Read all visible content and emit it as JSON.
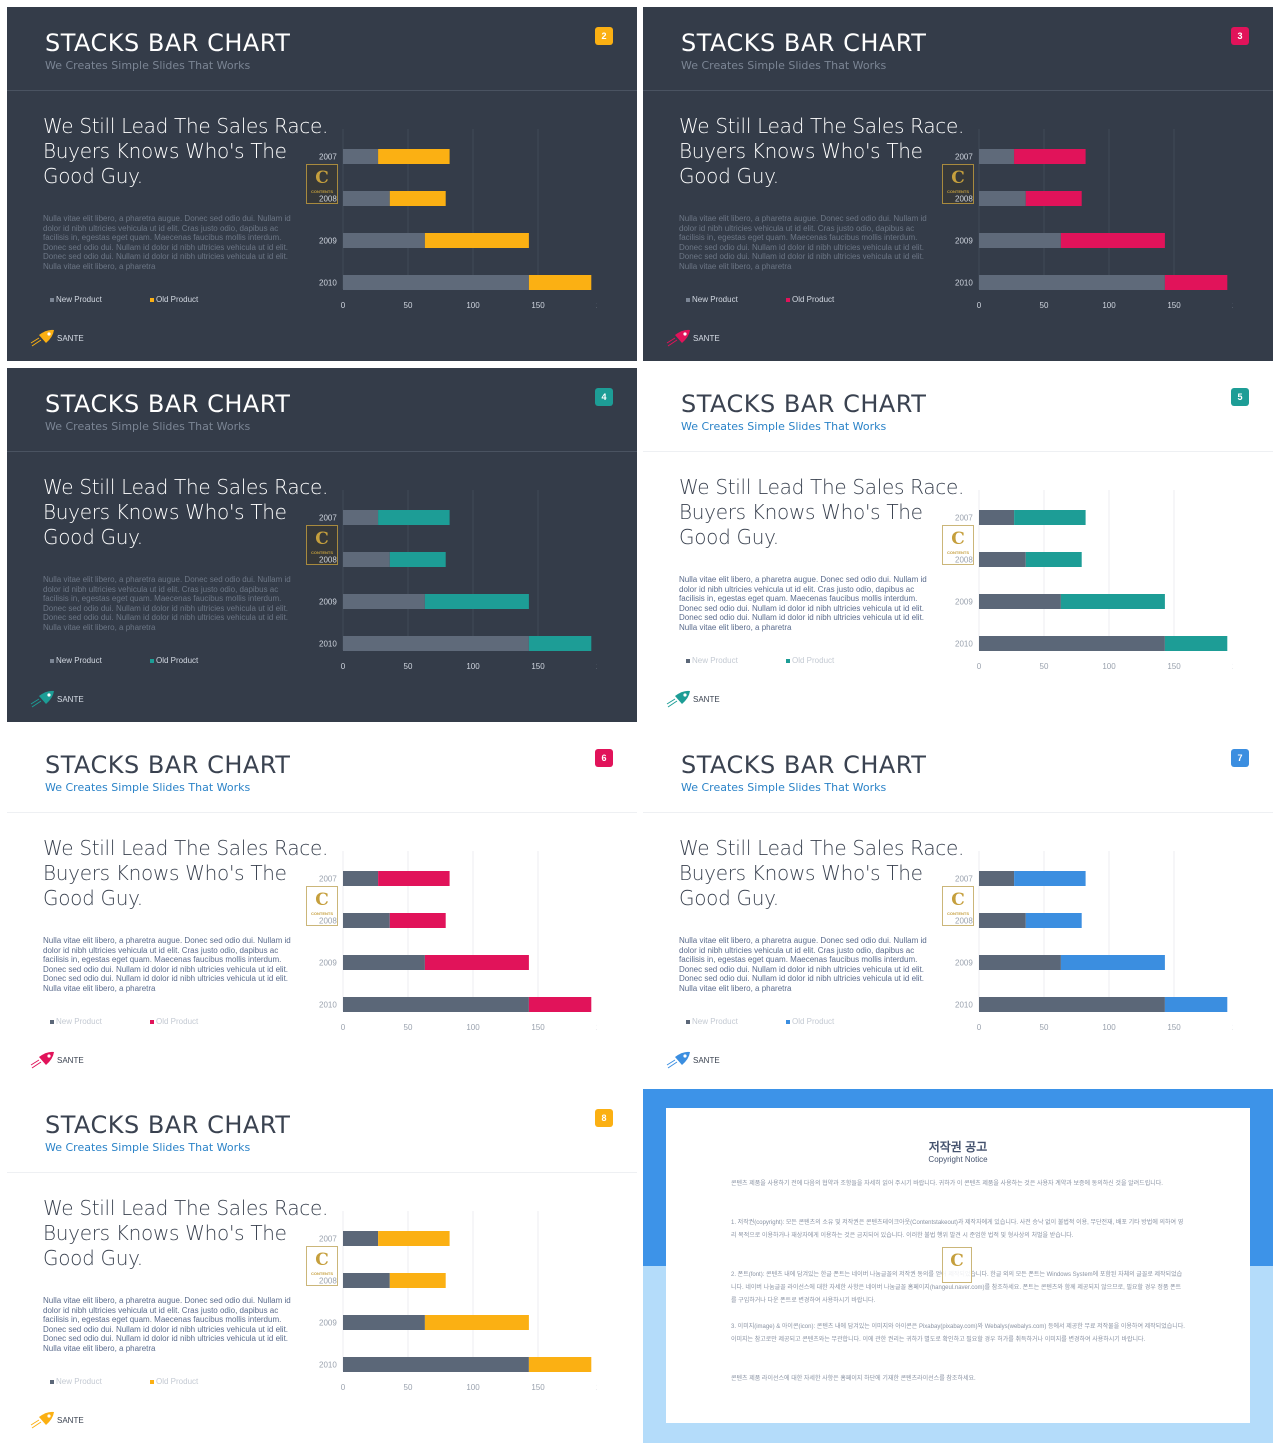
{
  "colors": {
    "new_product": "#5b6778",
    "dark_background": "#343c49",
    "light_background": "#ffffff",
    "orange": "#fbb013",
    "pink": "#e1135a",
    "teal": "#1d9d96",
    "blue": "#3b8ee0"
  },
  "slide_text": {
    "title": "STACKS BAR CHART",
    "subtitle": "We Creates Simple Slides That Works",
    "headline": [
      "We Still Lead The Sales Race.",
      "Buyers Knows Who's The",
      "Good Guy."
    ],
    "body": "Nulla vitae elit libero, a pharetra augue. Donec sed odio dui. Nullam id dolor id nibh ultricies vehicula ut id elit. Cras justo odio, dapibus ac facilisis in, egestas eget quam. Maecenas faucibus mollis interdum. Donec sed odio dui. Nullam id dolor id nibh ultricies vehicula ut id elit. Donec sed odio dui. Nullam id dolor id nibh ultricies vehicula ut id elit. Nulla vitae elit libero, a pharetra",
    "brand": "SANTE",
    "seal_letter": "C",
    "seal_text": "CONTENTS"
  },
  "slides": [
    {
      "number": "2",
      "theme": "dark",
      "accent": "#fbb013",
      "icon": "rocket-icon"
    },
    {
      "number": "3",
      "theme": "dark",
      "accent": "#e1135a",
      "icon": "rocket-icon"
    },
    {
      "number": "4",
      "theme": "dark",
      "accent": "#1d9d96",
      "icon": "rocket-icon"
    },
    {
      "number": "5",
      "theme": "light",
      "accent": "#1d9d96",
      "icon": "rocket-icon"
    },
    {
      "number": "6",
      "theme": "light",
      "accent": "#e1135a",
      "icon": "rocket-icon"
    },
    {
      "number": "7",
      "theme": "light",
      "accent": "#3b8ee0",
      "icon": "rocket-icon"
    },
    {
      "number": "8",
      "theme": "light",
      "accent": "#fbb013",
      "icon": "rocket-icon"
    }
  ],
  "chart_data": {
    "type": "bar",
    "orientation": "horizontal",
    "stacked": true,
    "categories": [
      "2007",
      "2008",
      "2009",
      "2010"
    ],
    "series": [
      {
        "name": "New Product",
        "values": [
          27,
          36,
          63,
          143
        ]
      },
      {
        "name": "Old Product",
        "values": [
          55,
          43,
          80,
          48
        ]
      }
    ],
    "xlim": [
      0,
      200
    ],
    "xticks": [
      0,
      50,
      100,
      150,
      200
    ],
    "grid": "vertical",
    "legend": "bottom-left"
  },
  "copyright": {
    "title": "저작권 공고",
    "subtitle": "Copyright Notice",
    "paragraphs": [
      "콘텐츠 제품을 사용하기 전에 다음의 협약과 조항들을 자세히 읽어 주시기 바랍니다. 귀하가 이 콘텐츠 제품을 사용하는 것은 사용자 계약과 보증에 동의하신 것을 알려드립니다.",
      "1. 저작권(copyright): 모든 콘텐츠의 소유 및 저작권은 콘텐츠테이크아웃(Contentstakeout)과 제작자에게 있습니다. 사전 승낙 없이 불법적 이용, 무단전재, 배포 기타 방법에 의하여 영리 목적으로 이용하거나 재상자에게 이용하는 것은 금지되어 있습니다. 이러한 불법 행위 발견 시 준엄한 법적 및 형사상의 처벌을 받습니다.",
      "2. 폰트(font): 콘텐츠 내에 담겨있는 한글 폰트는 네이버 나눔글꼴의 저작권 동의를 얻어 제작되었습니다. 한글 외의 모든 폰트는 Windows System에 포함된 자체의 글꼴로 제작되었습니다. 네이버 나눔글꼴 라이선스에 대한 자세한 사항은 네이버 나눔글꼴 홈페이지(hangeul.naver.com)를 참조하세요. 폰트는 콘텐츠와 함께 제공되지 않으므로, 필요할 경우 정품 폰트를 구입하거나 다운 폰트로 변경하여 사용하시기 바랍니다.",
      "3. 이미지(image) & 아이콘(icon): 콘텐츠 내에 담겨있는 이미지와 아이콘은 Pixabay(pixabay.com)와 Webalys(webalys.com) 등에서 제공한 무료 저작물을 이용하여 제작되었습니다. 이미지는 참고로만 제공되고 콘텐츠와는 무관합니다. 이에 관한 권리는 귀하가 별도로 확인하고 필요할 경우 허가를 취득하거나 이미지를 변경하여 사용하시기 바랍니다.",
      "콘텐츠 제품 라이선스에 대한 자세한 사항은 홈페이지 하단에 기재한 콘텐츠라이선스를 참조하세요."
    ]
  }
}
